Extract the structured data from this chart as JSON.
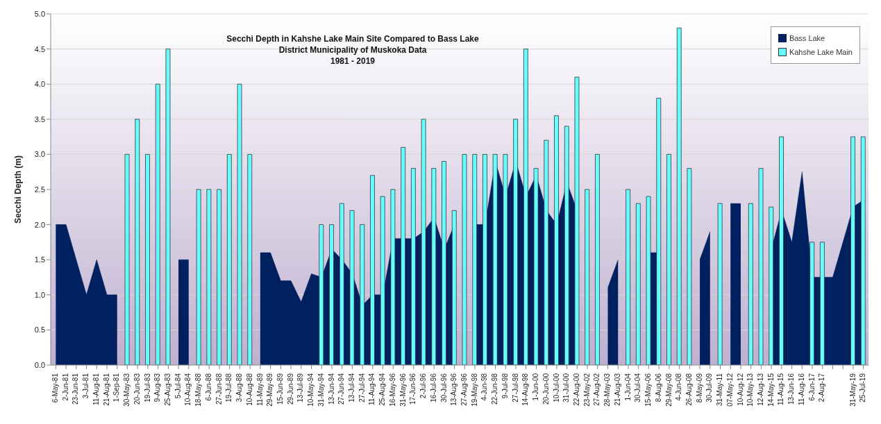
{
  "chart_data": {
    "type": "bar",
    "title": "Secchi Depth in Kahshe Lake Main Site Compared to Bass Lake",
    "subtitle": "District Municipality of Muskoka Data",
    "annotations": [
      "1981 - 2019"
    ],
    "ylabel": "Secchi Depth (m)",
    "categories": [
      "6-May-81",
      "2-Jun-81",
      "23-Jun-81",
      "3-Jul-81",
      "11-Aug-81",
      "21-Aug-81",
      "1-Sep-81",
      "30-May-83",
      "20-Jun-83",
      "19-Jul-83",
      "9-Aug-83",
      "25-Aug-83",
      "5-Jul-84",
      "10-Aug-84",
      "18-May-88",
      "6-Jun-88",
      "27-Jun-88",
      "19-Jul-88",
      "3-Aug-88",
      "10-Aug-88",
      "11-May-89",
      "29-May-89",
      "15-Jun-89",
      "29-Jun-89",
      "13-Jul-89",
      "10-May-94",
      "31-May-94",
      "13-Jun-94",
      "27-Jun-94",
      "13-Jul-94",
      "27-Jul-94",
      "11-Aug-94",
      "25-Aug-94",
      "16-May-96",
      "31-May-96",
      "17-Jun-96",
      "2-Jul-96",
      "16-Jul-96",
      "30-Jul-96",
      "13-Aug-96",
      "27-Aug-96",
      "19-May-98",
      "4-Jun-98",
      "22-Jun-98",
      "9-Jul-98",
      "27-Jul-98",
      "14-Aug-98",
      "1-Jun-00",
      "20-Jun-00",
      "10-Jul-00",
      "31-Jul-00",
      "22-Aug-00",
      "23-May-02",
      "27-Aug-02",
      "28-May-03",
      "21-Aug-03",
      "1-Jun-04",
      "30-Jul-04",
      "15-May-06",
      "8-Aug-06",
      "29-May-08",
      "4-Jun-08",
      "26-Aug-08",
      "8-May-09",
      "30-Jul-09",
      "31-May-11",
      "07-May-12",
      "10-Aug-12",
      "10-May-13",
      "12-Aug-13",
      "14-May-15",
      "11-Aug-15",
      "13-Jun-16",
      "11-Aug-16",
      "6-Jun-17",
      "2-Aug-17",
      null,
      null,
      "31-May-19",
      "25-Jul-19"
    ],
    "series": [
      {
        "name": "Bass Lake",
        "type": "area",
        "color": "#002060",
        "values": [
          2.0,
          2.0,
          1.5,
          1.0,
          1.5,
          1.0,
          1.0,
          null,
          null,
          null,
          null,
          null,
          1.5,
          1.5,
          null,
          null,
          null,
          null,
          null,
          null,
          1.6,
          1.6,
          1.2,
          1.2,
          0.9,
          1.3,
          1.25,
          1.65,
          1.5,
          1.3,
          0.85,
          1.0,
          1.0,
          1.8,
          1.8,
          1.8,
          1.9,
          2.1,
          1.65,
          2.0,
          null,
          2.0,
          2.0,
          2.9,
          2.4,
          2.9,
          2.4,
          2.7,
          2.2,
          2.0,
          2.6,
          2.2,
          null,
          null,
          1.1,
          1.5,
          null,
          null,
          1.6,
          1.6,
          null,
          null,
          null,
          1.5,
          1.9,
          null,
          2.3,
          2.3,
          null,
          null,
          1.65,
          2.2,
          1.75,
          2.75,
          1.25,
          1.25,
          1.25,
          1.75,
          2.25,
          2.35
        ]
      },
      {
        "name": "Kahshe Lake Main",
        "color": "#66ffff",
        "values": [
          null,
          null,
          null,
          null,
          null,
          null,
          null,
          3.0,
          3.5,
          3.0,
          4.0,
          4.5,
          null,
          null,
          2.5,
          2.5,
          2.5,
          3.0,
          4.0,
          3.0,
          null,
          null,
          null,
          null,
          null,
          null,
          2.0,
          2.0,
          2.3,
          2.2,
          2.0,
          2.7,
          2.4,
          2.5,
          3.1,
          2.8,
          3.5,
          2.8,
          2.9,
          2.2,
          3.0,
          3.0,
          3.0,
          3.0,
          3.0,
          3.5,
          4.5,
          2.8,
          3.2,
          3.55,
          3.4,
          4.1,
          2.5,
          3.0,
          null,
          null,
          2.5,
          2.3,
          2.4,
          3.8,
          3.0,
          4.8,
          2.8,
          null,
          null,
          2.3,
          null,
          null,
          2.3,
          2.8,
          2.25,
          3.25,
          null,
          null,
          1.75,
          1.75,
          null,
          null,
          3.25,
          3.25
        ]
      }
    ],
    "ylim": [
      0,
      5
    ],
    "yticks": [
      {
        "value": 0,
        "label": "0.0"
      },
      0.5,
      {
        "value": 1,
        "label": "1.0"
      },
      1.5,
      {
        "value": 2,
        "label": "2.0"
      },
      2.5,
      {
        "value": 3,
        "label": "3.0"
      },
      3.5,
      {
        "value": 4,
        "label": "4.0"
      },
      4.5,
      {
        "value": 5,
        "label": "5.0"
      }
    ],
    "grid": "y",
    "legend": "top right"
  }
}
